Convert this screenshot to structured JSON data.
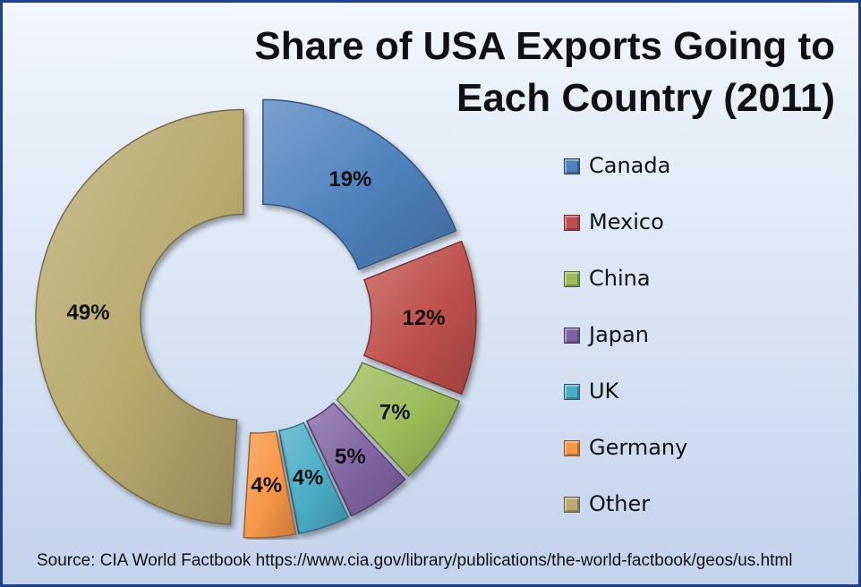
{
  "chart_data": {
    "type": "pie",
    "title_lines": [
      "Share of USA Exports Going to",
      "Each Country (2011)"
    ],
    "categories": [
      "Canada",
      "Mexico",
      "China",
      "Japan",
      "UK",
      "Germany",
      "Other"
    ],
    "values": [
      19,
      12,
      7,
      5,
      4,
      4,
      49
    ],
    "value_labels": [
      "19%",
      "12%",
      "7%",
      "5%",
      "4%",
      "4%",
      "49%"
    ],
    "colors": [
      "#4f81bd",
      "#c0504d",
      "#9bbb59",
      "#8064a2",
      "#4bacc6",
      "#f79646",
      "#b8a96e"
    ],
    "legend_position": "right",
    "donut": true,
    "exploded": true
  },
  "source": "Source: CIA World Factbook https://www.cia.gov/library/publications/the-world-factbook/geos/us.html"
}
